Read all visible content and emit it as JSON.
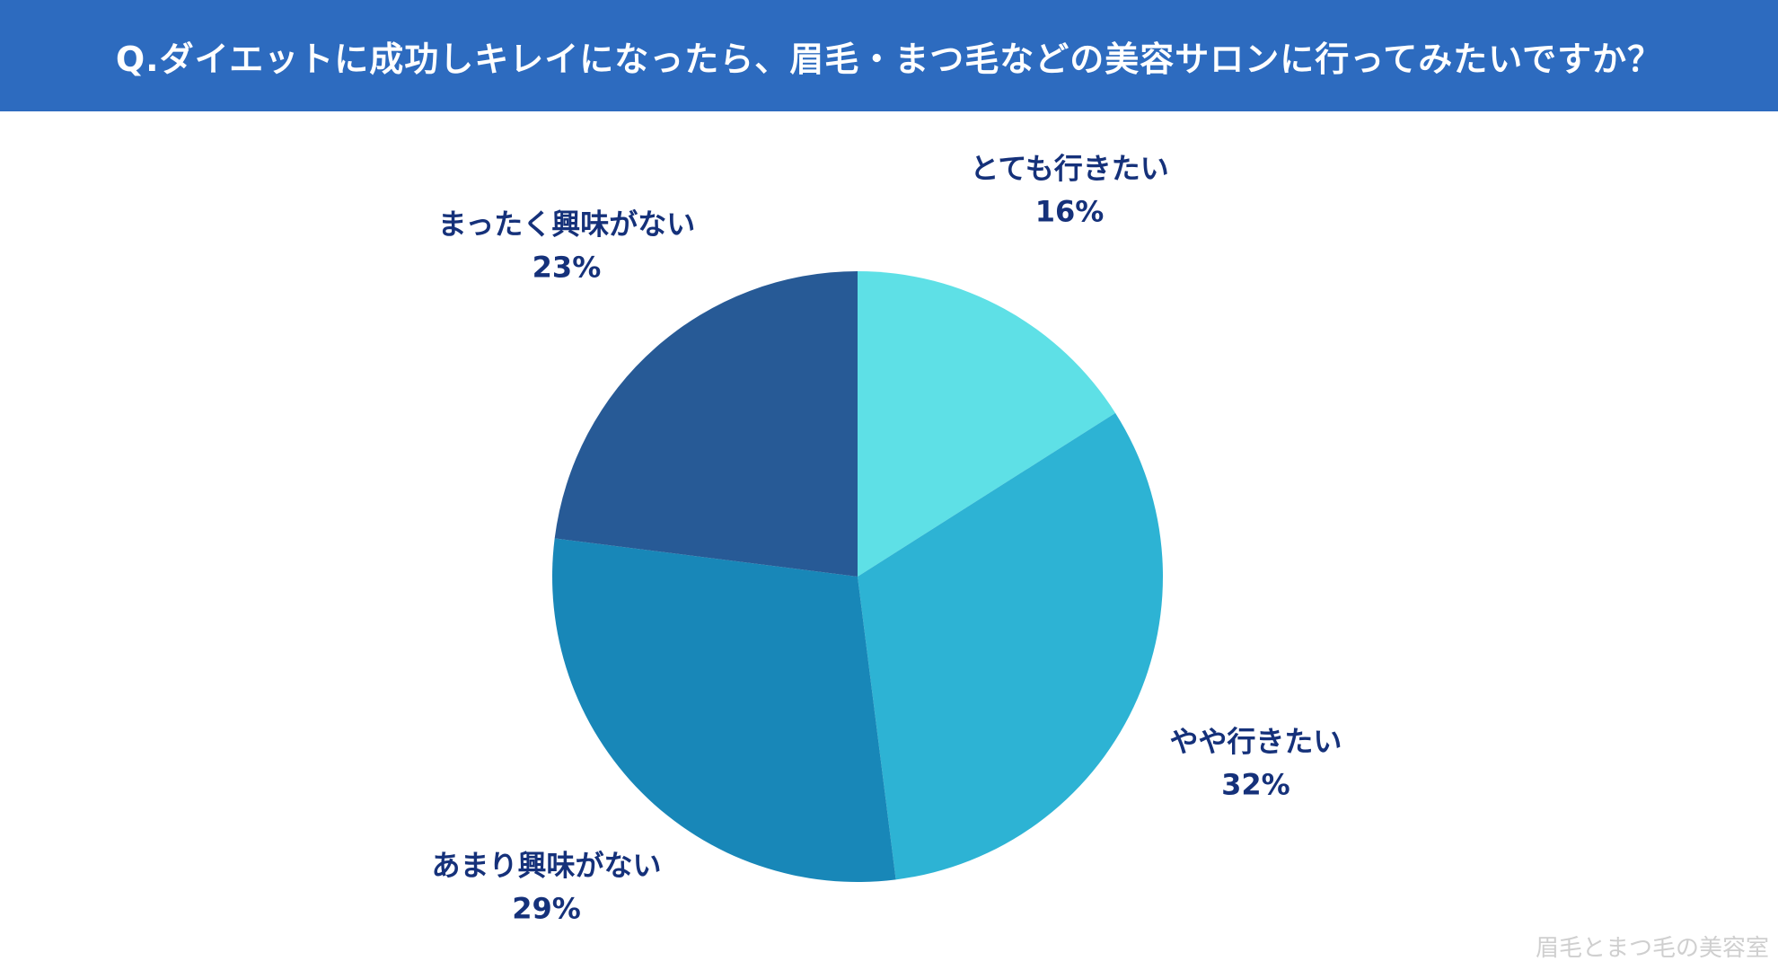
{
  "header": {
    "title": "Q.ダイエットに成功しキレイになったら、眉毛・まつ毛などの美容サロンに行ってみたいですか？",
    "background_color": "#2d6bbf"
  },
  "chart_data": {
    "type": "pie",
    "title": "",
    "start": "12 o'clock, clockwise",
    "label_color": "#15317a",
    "slices": [
      {
        "label": "とても行きたい",
        "value": 16,
        "value_label": "16%",
        "color": "#5ee0e6"
      },
      {
        "label": "やや行きたい",
        "value": 32,
        "value_label": "32%",
        "color": "#2db3d4"
      },
      {
        "label": "あまり興味がない",
        "value": 29,
        "value_label": "29%",
        "color": "#1887b8"
      },
      {
        "label": "まったく興味がない",
        "value": 23,
        "value_label": "23%",
        "color": "#275a96"
      }
    ]
  },
  "watermark": {
    "text": "眉毛とまつ毛の美容室"
  }
}
